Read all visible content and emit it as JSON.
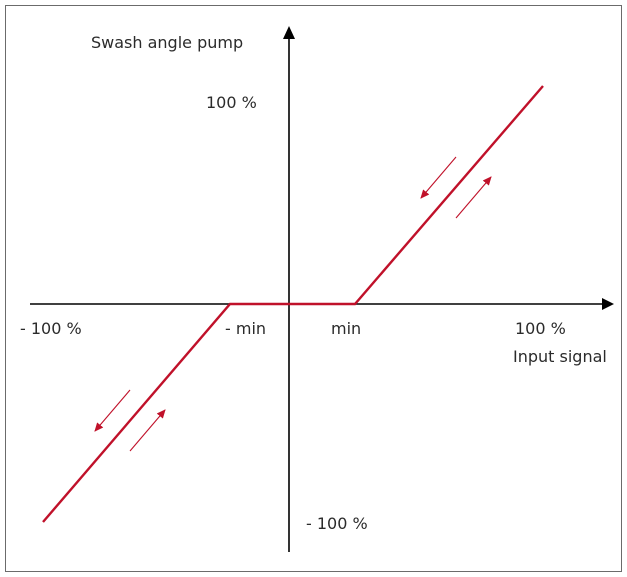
{
  "diagram": {
    "y_axis_title": "Swash angle pump",
    "x_axis_title": "Input signal",
    "y_pos_label": "100 %",
    "y_neg_label": "- 100 %",
    "x_pos_label": "100 %",
    "x_neg_label": "- 100 %",
    "x_pos_min_label": "min",
    "x_neg_min_label": "- min",
    "colors": {
      "axis": "#000000",
      "curve": "#c0112a",
      "frame": "#6b6b6b",
      "text": "#2b2b2b"
    }
  }
}
